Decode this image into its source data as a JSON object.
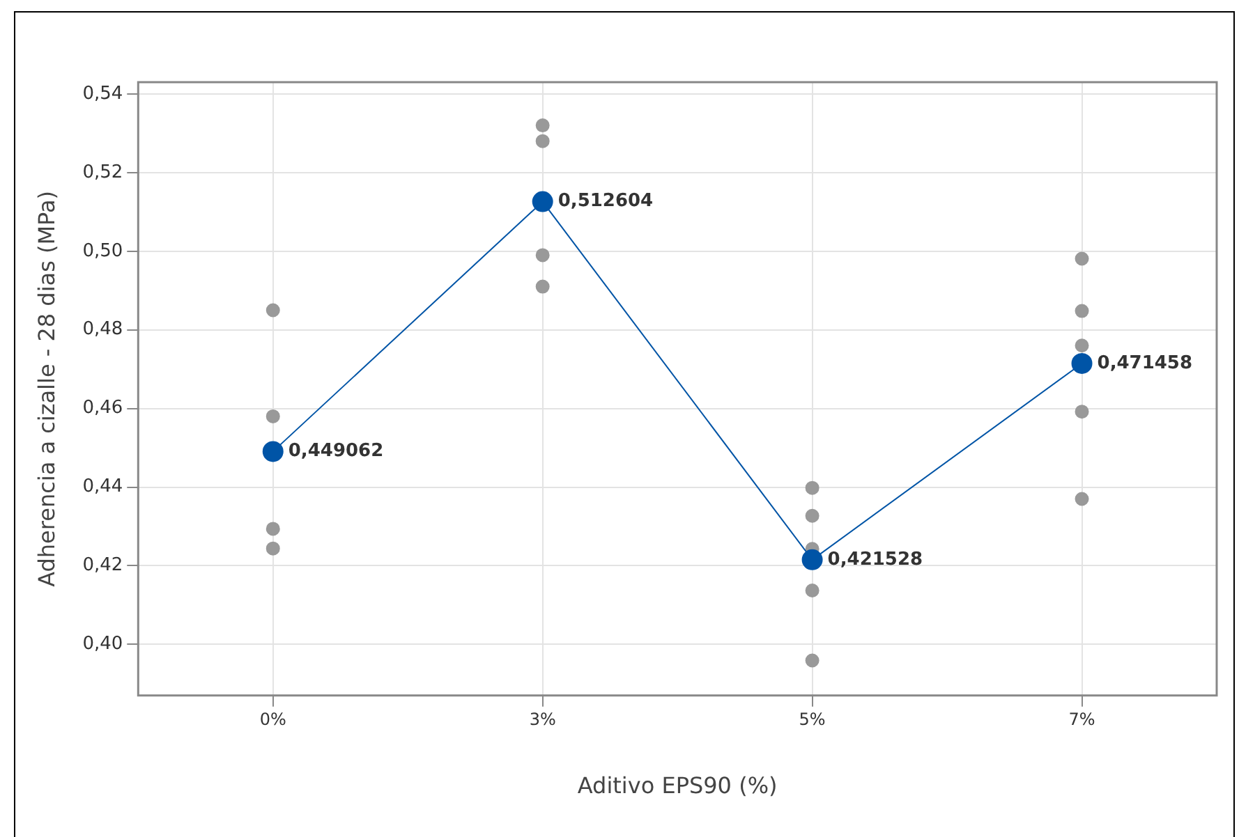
{
  "chart_data": {
    "type": "line",
    "xlabel": "Aditivo EPS90 (%)",
    "ylabel": "Adherencia a cizalle - 28 dias (MPa)",
    "categories": [
      "0%",
      "3%",
      "5%",
      "7%"
    ],
    "ylim": [
      0.387,
      0.543
    ],
    "yticks": [
      {
        "value": 0.4,
        "label": "0,40"
      },
      {
        "value": 0.42,
        "label": "0,42"
      },
      {
        "value": 0.44,
        "label": "0,44"
      },
      {
        "value": 0.46,
        "label": "0,46"
      },
      {
        "value": 0.48,
        "label": "0,48"
      },
      {
        "value": 0.5,
        "label": "0,50"
      },
      {
        "value": 0.52,
        "label": "0,52"
      },
      {
        "value": 0.54,
        "label": "0,54"
      }
    ],
    "grid": true,
    "legend": false,
    "marker": "circle",
    "line_style": "solid",
    "series": [
      {
        "type": "scatter",
        "color": "#999999",
        "x": [
          "0%",
          "0%",
          "0%",
          "0%",
          "3%",
          "3%",
          "3%",
          "3%",
          "5%",
          "5%",
          "5%",
          "5%",
          "5%",
          "7%",
          "7%",
          "7%",
          "7%",
          "7%"
        ],
        "values": [
          0.485,
          0.458,
          0.4294,
          0.4244,
          0.532,
          0.528,
          0.499,
          0.491,
          0.4398,
          0.4327,
          0.4243,
          0.4137,
          0.3959,
          0.4981,
          0.4848,
          0.476,
          0.4592,
          0.437
        ]
      },
      {
        "color": "#0054a6",
        "values": [
          0.449062,
          0.512604,
          0.421528,
          0.471458
        ],
        "value_labels": [
          "0,449062",
          "0,512604",
          "0,421528",
          "0,471458"
        ]
      }
    ]
  }
}
